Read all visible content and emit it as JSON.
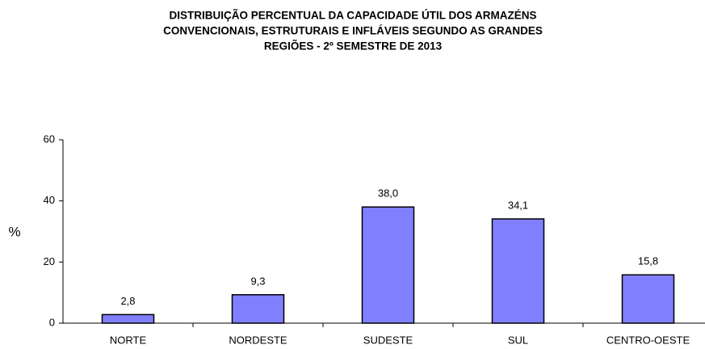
{
  "chart_data": {
    "type": "bar",
    "title": [
      "DISTRIBUIÇÃO PERCENTUAL DA CAPACIDADE ÚTIL DOS ARMAZÉNS",
      "CONVENCIONAIS, ESTRUTURAIS E INFLÁVEIS SEGUNDO AS GRANDES",
      "REGIÕES - 2º SEMESTRE DE 2013"
    ],
    "y_label": "%",
    "categories": [
      "NORTE",
      "NORDESTE",
      "SUDESTE",
      "SUL",
      "CENTRO-OESTE"
    ],
    "values": [
      2.8,
      9.3,
      38.0,
      34.1,
      15.8
    ],
    "value_labels": [
      "2,8",
      "9,3",
      "38,0",
      "34,1",
      "15,8"
    ],
    "color": "#8080ff",
    "ylim": [
      0,
      60
    ],
    "yticks": [
      0,
      20,
      40,
      60
    ],
    "grid": false
  }
}
